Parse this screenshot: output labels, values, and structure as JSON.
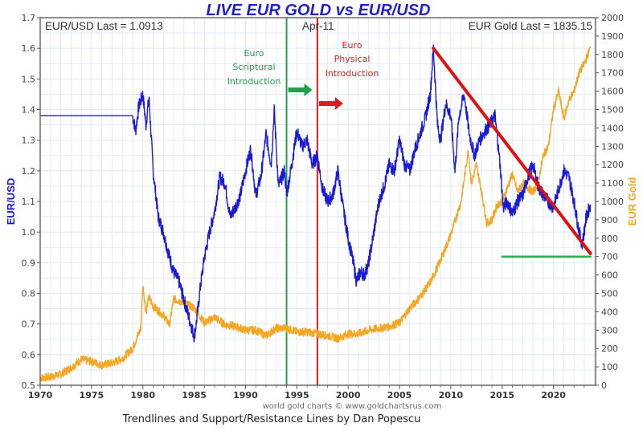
{
  "chart_data": {
    "type": "line",
    "title": "LIVE EUR GOLD vs EUR/USD",
    "xlabel": "",
    "ylabel_left": "EUR/USD",
    "ylabel_right": "EUR Gold",
    "xlim": [
      1970,
      2024.1
    ],
    "ylim_left": [
      0.5,
      1.7
    ],
    "ylim_right": [
      0,
      2000
    ],
    "grid": true,
    "x_ticks": [
      "1970",
      "1975",
      "1980",
      "1985",
      "1990",
      "1995",
      "2000",
      "2005",
      "2010",
      "2015",
      "2020"
    ],
    "x_tick_values": [
      1970,
      1975,
      1980,
      1985,
      1990,
      1995,
      2000,
      2005,
      2010,
      2015,
      2020
    ],
    "y_left_ticks": [
      "1.7",
      "1.6",
      "1.5",
      "1.4",
      "1.3",
      "1.2",
      "1.1",
      "1.0",
      "0.9",
      "0.8",
      "0.7",
      "0.6",
      "0.5"
    ],
    "y_left_tick_values": [
      1.7,
      1.6,
      1.5,
      1.4,
      1.3,
      1.2,
      1.1,
      1.0,
      0.9,
      0.8,
      0.7,
      0.6,
      0.5
    ],
    "y_right_ticks": [
      "2000",
      "1900",
      "1800",
      "1700",
      "1600",
      "1500",
      "1400",
      "1300",
      "1200",
      "1100",
      "1000",
      "900",
      "800",
      "700",
      "600",
      "500",
      "400",
      "300",
      "200",
      "100",
      "0"
    ],
    "y_right_tick_values": [
      2000,
      1900,
      1800,
      1700,
      1600,
      1500,
      1400,
      1300,
      1200,
      1100,
      1000,
      900,
      800,
      700,
      600,
      500,
      400,
      300,
      200,
      100,
      0
    ],
    "series": [
      {
        "name": "EUR/USD",
        "axis": "left",
        "color": "#1a1ad6",
        "x": [
          1970,
          1979.0,
          1979.3,
          1979.6,
          1980.0,
          1980.3,
          1980.6,
          1981.0,
          1981.5,
          1982.0,
          1982.5,
          1983.0,
          1983.5,
          1984.0,
          1984.5,
          1985.0,
          1985.2,
          1985.6,
          1986.0,
          1986.5,
          1987.0,
          1987.5,
          1988.0,
          1988.5,
          1989.0,
          1989.5,
          1990.0,
          1990.5,
          1991.0,
          1991.5,
          1992.0,
          1992.5,
          1992.8,
          1993.2,
          1993.8,
          1994.0,
          1994.5,
          1995.0,
          1995.5,
          1996.0,
          1996.5,
          1997.0,
          1997.5,
          1998.0,
          1998.5,
          1999.0,
          1999.5,
          2000.0,
          2000.5,
          2000.8,
          2001.2,
          2001.6,
          2002.0,
          2002.5,
          2003.0,
          2003.5,
          2004.0,
          2004.5,
          2005.0,
          2005.5,
          2006.0,
          2006.5,
          2007.0,
          2007.5,
          2008.0,
          2008.3,
          2008.7,
          2009.0,
          2009.5,
          2010.0,
          2010.4,
          2010.8,
          2011.3,
          2011.8,
          2012.3,
          2012.8,
          2013.3,
          2013.8,
          2014.3,
          2014.8,
          2015.1,
          2015.5,
          2016.0,
          2016.5,
          2017.0,
          2017.5,
          2018.0,
          2018.5,
          2019.0,
          2019.5,
          2020.0,
          2020.5,
          2021.0,
          2021.5,
          2022.0,
          2022.5,
          2022.8,
          2023.2,
          2023.6
        ],
        "values": [
          1.38,
          1.38,
          1.33,
          1.41,
          1.45,
          1.35,
          1.44,
          1.2,
          1.05,
          1.0,
          0.93,
          0.87,
          0.84,
          0.78,
          0.72,
          0.66,
          0.7,
          0.82,
          0.92,
          1.0,
          1.07,
          1.18,
          1.16,
          1.05,
          1.08,
          1.12,
          1.2,
          1.27,
          1.12,
          1.18,
          1.32,
          1.22,
          1.4,
          1.15,
          1.2,
          1.12,
          1.22,
          1.33,
          1.28,
          1.3,
          1.22,
          1.25,
          1.14,
          1.1,
          1.12,
          1.2,
          1.08,
          0.98,
          0.9,
          0.84,
          0.87,
          0.86,
          0.9,
          1.0,
          1.1,
          1.15,
          1.22,
          1.2,
          1.3,
          1.22,
          1.2,
          1.27,
          1.32,
          1.37,
          1.45,
          1.6,
          1.35,
          1.3,
          1.42,
          1.38,
          1.2,
          1.38,
          1.45,
          1.32,
          1.25,
          1.3,
          1.33,
          1.35,
          1.38,
          1.22,
          1.08,
          1.1,
          1.06,
          1.1,
          1.12,
          1.18,
          1.22,
          1.15,
          1.12,
          1.1,
          1.08,
          1.14,
          1.2,
          1.18,
          1.1,
          1.0,
          0.96,
          1.05,
          1.09
        ]
      },
      {
        "name": "EUR Gold",
        "axis": "right",
        "color": "#f5a623",
        "x": [
          1970,
          1971,
          1972,
          1973,
          1974,
          1975,
          1976,
          1977,
          1978,
          1979,
          1979.8,
          1980.0,
          1980.3,
          1980.6,
          1981,
          1982,
          1982.6,
          1983,
          1984,
          1985,
          1986,
          1987,
          1988,
          1989,
          1990,
          1991,
          1992,
          1993,
          1994,
          1995,
          1996,
          1997,
          1998,
          1999,
          2000,
          2001,
          2002,
          2003,
          2004,
          2005,
          2006,
          2007,
          2008,
          2009,
          2010,
          2011,
          2011.7,
          2012,
          2012.5,
          2013,
          2013.5,
          2014,
          2014.5,
          2015,
          2016,
          2016.5,
          2017,
          2018,
          2018.5,
          2019,
          2019.5,
          2020,
          2020.5,
          2021,
          2021.5,
          2022,
          2022.5,
          2023,
          2023.6
        ],
        "values": [
          40,
          45,
          60,
          95,
          140,
          130,
          110,
          120,
          145,
          200,
          310,
          550,
          400,
          480,
          430,
          380,
          330,
          470,
          450,
          420,
          340,
          370,
          330,
          320,
          300,
          300,
          270,
          310,
          310,
          290,
          290,
          280,
          270,
          255,
          280,
          280,
          300,
          310,
          320,
          340,
          420,
          480,
          560,
          680,
          820,
          1000,
          1280,
          1100,
          1200,
          1050,
          880,
          900,
          980,
          1000,
          1150,
          1050,
          1100,
          1050,
          1100,
          1250,
          1300,
          1500,
          1600,
          1450,
          1550,
          1600,
          1700,
          1750,
          1835
        ]
      }
    ],
    "reference_lines": [
      {
        "name": "Euro Scriptural Introduction",
        "type": "vertical",
        "x": 1994.0,
        "color": "#22a04a"
      },
      {
        "name": "Euro Physical Introduction",
        "type": "vertical",
        "x": 1997.0,
        "color": "#d81e1e"
      }
    ],
    "trendlines": [
      {
        "name": "resistance-trendline",
        "color": "#e01010",
        "x": [
          2008.3,
          2023.6
        ],
        "values": [
          1.6,
          0.93
        ],
        "axis": "left"
      },
      {
        "name": "support-line",
        "color": "#22b04a",
        "x": [
          2015.0,
          2023.6
        ],
        "values": [
          0.92,
          0.92
        ],
        "axis": "left"
      }
    ],
    "annotations": {
      "eurusd_last": "EUR/USD Last = 1.0913",
      "gold_last": "EUR Gold Last = 1835.15",
      "date_label": "Apr-11",
      "scriptural_lines": [
        "Euro",
        "Scriptural",
        "Introduction"
      ],
      "physical_lines": [
        "Euro",
        "Physical",
        "Introduction"
      ],
      "watermark": "world gold charts © www.goldchartsrus.com",
      "caption": "Trendlines and Support/Resistance Lines by Dan Popescu"
    }
  }
}
